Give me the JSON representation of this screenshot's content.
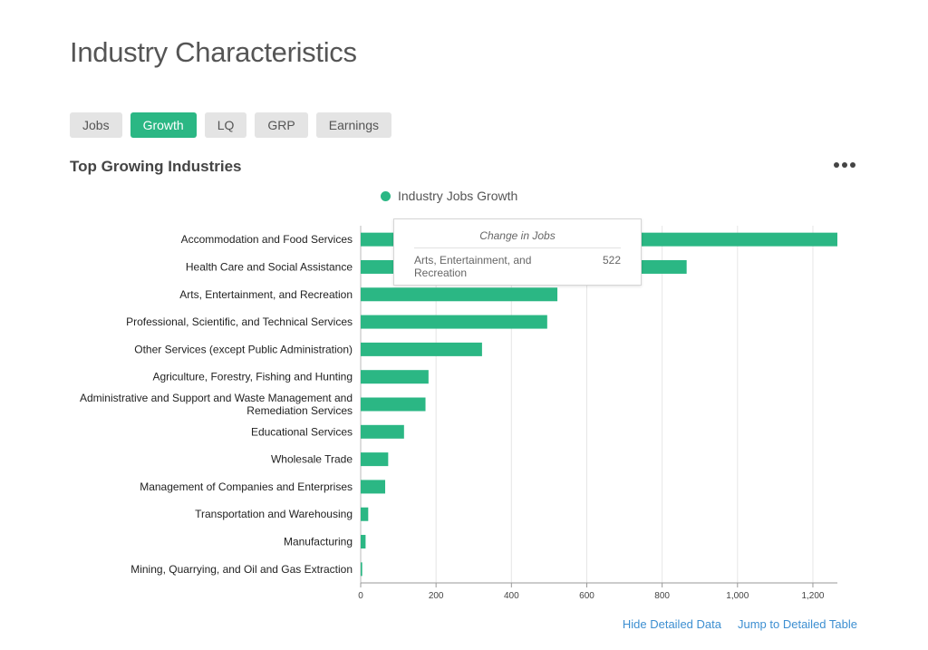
{
  "page": {
    "title": "Industry Characteristics"
  },
  "tabs": [
    {
      "label": "Jobs",
      "active": false
    },
    {
      "label": "Growth",
      "active": true
    },
    {
      "label": "LQ",
      "active": false
    },
    {
      "label": "GRP",
      "active": false
    },
    {
      "label": "Earnings",
      "active": false
    }
  ],
  "section": {
    "title": "Top Growing Industries"
  },
  "colors": {
    "accent": "#2bb784",
    "link": "#3d8fd1"
  },
  "tooltip": {
    "title": "Change in Jobs",
    "label": "Arts, Entertainment, and Recreation",
    "value": "522"
  },
  "footer": {
    "hide_detailed": "Hide Detailed Data",
    "jump_to_table": "Jump to Detailed Table"
  },
  "chart_data": {
    "type": "bar",
    "orientation": "horizontal",
    "categories": [
      "Accommodation and Food Services",
      "Health Care and Social Assistance",
      "Arts, Entertainment, and Recreation",
      "Professional, Scientific, and Technical Services",
      "Other Services (except Public Administration)",
      "Agriculture, Forestry, Fishing and Hunting",
      "Administrative and Support and Waste Management and Remediation Services",
      "Educational Services",
      "Wholesale Trade",
      "Management of Companies and Enterprises",
      "Transportation and Warehousing",
      "Manufacturing",
      "Mining, Quarrying, and Oil and Gas Extraction"
    ],
    "series": [
      {
        "name": "Industry Jobs Growth",
        "color": "#2bb784",
        "values": [
          1265,
          865,
          522,
          495,
          322,
          180,
          172,
          115,
          73,
          65,
          20,
          13,
          4
        ]
      }
    ],
    "x_ticks": [
      0,
      200,
      400,
      600,
      800,
      1000,
      1200
    ],
    "x_tick_labels": [
      "0",
      "200",
      "400",
      "600",
      "800",
      "1,000",
      "1,200"
    ],
    "xlim": [
      0,
      1265
    ],
    "grid": true,
    "legend": "top-center"
  }
}
